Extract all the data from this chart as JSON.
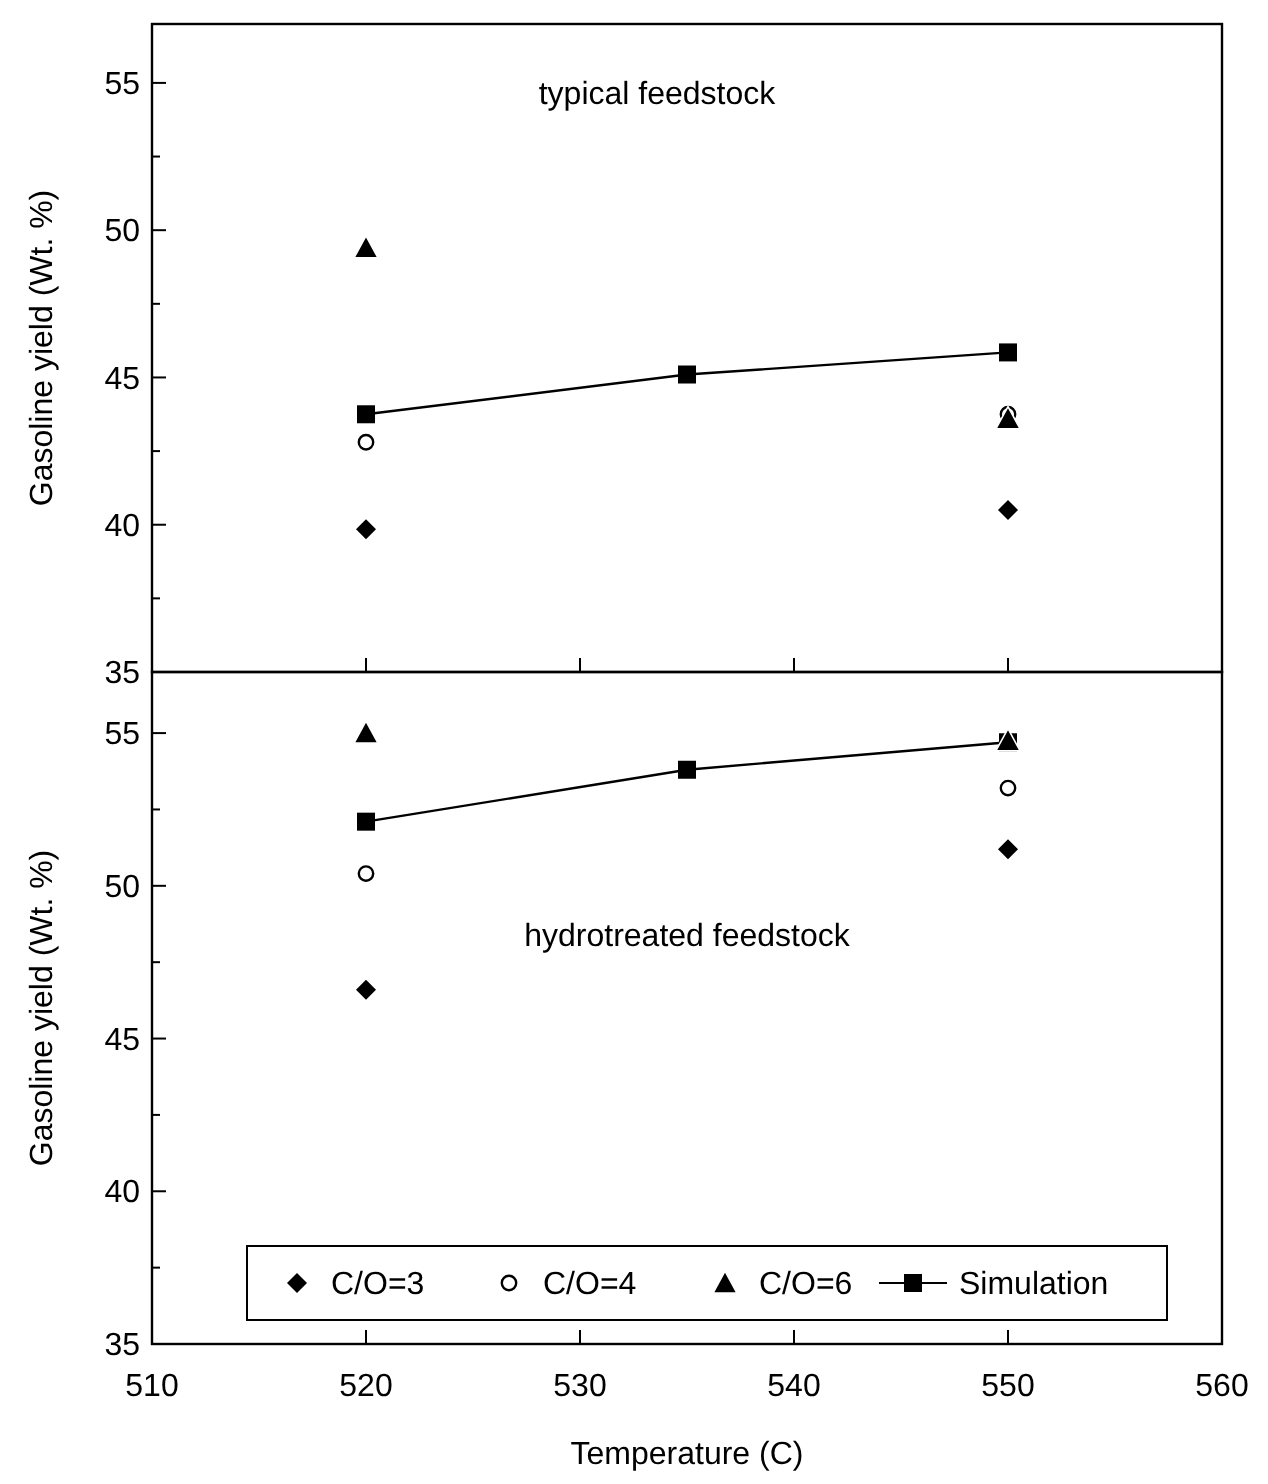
{
  "chart_data": [
    {
      "type": "scatter",
      "ylabel": "Gasoline yield (Wt. %)",
      "annotations": [
        "typical feedstock"
      ],
      "xlim": [
        510,
        560
      ],
      "ylim": [
        35,
        57
      ],
      "xticks": [
        510,
        520,
        530,
        540,
        550,
        560
      ],
      "yticks": [
        35,
        {
          "value": 37.5,
          "label": null
        },
        40,
        {
          "value": 42.5,
          "label": null
        },
        45,
        {
          "value": 47.5,
          "label": null
        },
        50,
        {
          "value": 52.5,
          "label": null
        },
        55
      ],
      "tick_labels": "y",
      "legend": false,
      "grid": false,
      "series": [
        {
          "type": "scatter",
          "marker": "diamond",
          "color": "#000000",
          "x": [
            520,
            550
          ],
          "values": [
            39.85,
            40.5
          ]
        },
        {
          "type": "scatter",
          "marker": "circle",
          "color": "#000000",
          "x": [
            520,
            550
          ],
          "values": [
            42.8,
            43.75
          ]
        },
        {
          "type": "scatter",
          "marker": "triangle",
          "color": "#000000",
          "x": [
            520,
            550
          ],
          "values": [
            49.4,
            43.6
          ]
        },
        {
          "type": "line",
          "marker": "square",
          "line_style": "solid",
          "color": "#000000",
          "x": [
            520,
            535,
            550
          ],
          "values": [
            43.75,
            45.1,
            45.85
          ]
        }
      ]
    },
    {
      "type": "scatter",
      "xlabel": "Temperature (C)",
      "ylabel": "Gasoline yield (Wt. %)",
      "annotations": [
        "hydrotreated feedstock"
      ],
      "xlim": [
        510,
        560
      ],
      "ylim": [
        35,
        57
      ],
      "xticks": [
        510,
        520,
        530,
        540,
        550,
        560
      ],
      "yticks": [
        35,
        {
          "value": 37.5,
          "label": null
        },
        40,
        {
          "value": 42.5,
          "label": null
        },
        45,
        {
          "value": 47.5,
          "label": null
        },
        50,
        {
          "value": 52.5,
          "label": null
        },
        55
      ],
      "legend": "bottom",
      "grid": false,
      "series": [
        {
          "name": "C/O=3",
          "type": "scatter",
          "marker": "diamond",
          "color": "#000000",
          "x": [
            520,
            550
          ],
          "values": [
            46.6,
            51.2
          ]
        },
        {
          "name": "C/O=4",
          "type": "scatter",
          "marker": "circle",
          "color": "#000000",
          "x": [
            520,
            550
          ],
          "values": [
            50.4,
            53.2
          ]
        },
        {
          "name": "C/O=6",
          "type": "scatter",
          "marker": "triangle",
          "color": "#000000",
          "x": [
            520,
            550
          ],
          "values": [
            55.0,
            54.75
          ]
        },
        {
          "name": "Simulation",
          "type": "line",
          "marker": "square",
          "line_style": "solid",
          "color": "#000000",
          "x": [
            520,
            535,
            550
          ],
          "values": [
            52.1,
            53.8,
            54.7
          ]
        }
      ]
    }
  ]
}
